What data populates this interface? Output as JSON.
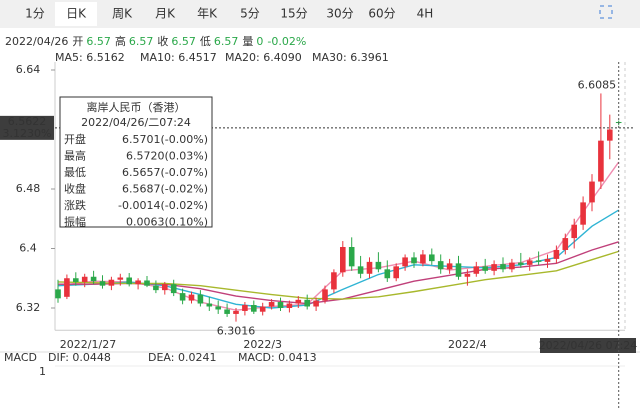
{
  "chart_data": {
    "type": "candlestick",
    "tabs": [
      "1分",
      "日K",
      "周K",
      "月K",
      "年K",
      "5分",
      "15分",
      "30分",
      "60分",
      "4H"
    ],
    "selected_tab": 1,
    "info": {
      "date": "2022/04/26",
      "items": [
        [
          "开",
          "6.57"
        ],
        [
          "高",
          "6.57"
        ],
        [
          "收",
          "6.57"
        ],
        [
          "低",
          "6.57"
        ],
        [
          "量",
          "0"
        ]
      ],
      "change": "-0.02%"
    },
    "ma_legend": [
      {
        "label": "MA5: 6.5162",
        "color": "#f08cb0"
      },
      {
        "label": "MA10: 6.4517",
        "color": "#2fb4d4"
      },
      {
        "label": "MA20: 6.4090",
        "color": "#c0407a"
      },
      {
        "label": "MA30: 6.3961",
        "color": "#a8b82c"
      }
    ],
    "ylim": [
      6.29,
      6.65
    ],
    "yticks": [
      6.64,
      6.48,
      6.4,
      6.32
    ],
    "up_color": "#e8323c",
    "down_color": "#2ba84a",
    "candles": [
      [
        6.345,
        6.358,
        6.327,
        6.333
      ],
      [
        6.335,
        6.365,
        6.332,
        6.36
      ],
      [
        6.36,
        6.368,
        6.35,
        6.355
      ],
      [
        6.355,
        6.366,
        6.348,
        6.362
      ],
      [
        6.362,
        6.37,
        6.352,
        6.356
      ],
      [
        6.356,
        6.364,
        6.346,
        6.35
      ],
      [
        6.35,
        6.362,
        6.344,
        6.358
      ],
      [
        6.358,
        6.366,
        6.35,
        6.361
      ],
      [
        6.361,
        6.367,
        6.349,
        6.352
      ],
      [
        6.352,
        6.36,
        6.345,
        6.357
      ],
      [
        6.357,
        6.363,
        6.348,
        6.35
      ],
      [
        6.35,
        6.357,
        6.34,
        6.344
      ],
      [
        6.344,
        6.355,
        6.338,
        6.352
      ],
      [
        6.352,
        6.358,
        6.336,
        6.34
      ],
      [
        6.34,
        6.346,
        6.325,
        6.33
      ],
      [
        6.33,
        6.342,
        6.326,
        6.338
      ],
      [
        6.338,
        6.344,
        6.322,
        6.326
      ],
      [
        6.326,
        6.335,
        6.316,
        6.322
      ],
      [
        6.322,
        6.33,
        6.312,
        6.318
      ],
      [
        6.318,
        6.326,
        6.308,
        6.312
      ],
      [
        6.312,
        6.32,
        6.3016,
        6.316
      ],
      [
        6.316,
        6.328,
        6.31,
        6.324
      ],
      [
        6.324,
        6.33,
        6.312,
        6.315
      ],
      [
        6.315,
        6.327,
        6.31,
        6.322
      ],
      [
        6.322,
        6.332,
        6.318,
        6.328
      ],
      [
        6.328,
        6.334,
        6.316,
        6.32
      ],
      [
        6.32,
        6.33,
        6.314,
        6.326
      ],
      [
        6.326,
        6.336,
        6.32,
        6.331
      ],
      [
        6.331,
        6.338,
        6.318,
        6.322
      ],
      [
        6.322,
        6.334,
        6.316,
        6.33
      ],
      [
        6.33,
        6.35,
        6.326,
        6.345
      ],
      [
        6.345,
        6.372,
        6.34,
        6.368
      ],
      [
        6.368,
        6.41,
        6.362,
        6.402
      ],
      [
        6.402,
        6.415,
        6.37,
        6.376
      ],
      [
        6.376,
        6.39,
        6.36,
        6.366
      ],
      [
        6.366,
        6.388,
        6.36,
        6.382
      ],
      [
        6.382,
        6.395,
        6.368,
        6.372
      ],
      [
        6.372,
        6.384,
        6.355,
        6.36
      ],
      [
        6.36,
        6.38,
        6.356,
        6.376
      ],
      [
        6.376,
        6.392,
        6.37,
        6.388
      ],
      [
        6.388,
        6.395,
        6.374,
        6.38
      ],
      [
        6.38,
        6.398,
        6.376,
        6.392
      ],
      [
        6.392,
        6.4,
        6.378,
        6.383
      ],
      [
        6.383,
        6.392,
        6.366,
        6.372
      ],
      [
        6.372,
        6.386,
        6.366,
        6.38
      ],
      [
        6.38,
        6.39,
        6.358,
        6.362
      ],
      [
        6.362,
        6.372,
        6.35,
        6.366
      ],
      [
        6.366,
        6.382,
        6.362,
        6.376
      ],
      [
        6.376,
        6.386,
        6.366,
        6.37
      ],
      [
        6.37,
        6.384,
        6.364,
        6.379
      ],
      [
        6.379,
        6.388,
        6.368,
        6.372
      ],
      [
        6.372,
        6.386,
        6.368,
        6.381
      ],
      [
        6.381,
        6.394,
        6.374,
        6.378
      ],
      [
        6.378,
        6.388,
        6.37,
        6.384
      ],
      [
        6.384,
        6.396,
        6.378,
        6.382
      ],
      [
        6.382,
        6.392,
        6.374,
        6.386
      ],
      [
        6.386,
        6.404,
        6.38,
        6.398
      ],
      [
        6.398,
        6.42,
        6.392,
        6.414
      ],
      [
        6.414,
        6.44,
        6.4,
        6.432
      ],
      [
        6.432,
        6.47,
        6.425,
        6.462
      ],
      [
        6.462,
        6.5,
        6.45,
        6.49
      ],
      [
        6.49,
        6.6085,
        6.48,
        6.545
      ],
      [
        6.545,
        6.58,
        6.52,
        6.56
      ],
      [
        6.5701,
        6.572,
        6.5657,
        6.5687
      ]
    ],
    "ma_x": [
      0,
      4,
      8,
      12,
      16,
      20,
      24,
      28,
      32,
      36,
      40,
      44,
      48,
      52,
      56,
      60,
      63
    ],
    "series": [
      {
        "color": "#f08cb0",
        "values": [
          6.35,
          6.356,
          6.355,
          6.347,
          6.328,
          6.317,
          6.322,
          6.325,
          6.37,
          6.374,
          6.383,
          6.371,
          6.376,
          6.381,
          6.398,
          6.466,
          6.5162
        ]
      },
      {
        "color": "#2fb4d4",
        "values": [
          6.35,
          6.352,
          6.355,
          6.35,
          6.338,
          6.325,
          6.32,
          6.324,
          6.345,
          6.365,
          6.378,
          6.376,
          6.374,
          6.378,
          6.388,
          6.43,
          6.4517
        ]
      },
      {
        "color": "#c0407a",
        "values": [
          6.352,
          6.352,
          6.353,
          6.352,
          6.346,
          6.336,
          6.33,
          6.326,
          6.332,
          6.344,
          6.356,
          6.364,
          6.372,
          6.375,
          6.38,
          6.398,
          6.409
        ]
      },
      {
        "color": "#a8b82c",
        "values": [
          6.355,
          6.354,
          6.353,
          6.353,
          6.35,
          6.344,
          6.338,
          6.333,
          6.332,
          6.335,
          6.342,
          6.35,
          6.358,
          6.364,
          6.37,
          6.385,
          6.3961
        ]
      }
    ],
    "current": {
      "value": 6.5622,
      "label": "6.5622",
      "pct": "3.1230%"
    },
    "high_note": {
      "index": 61,
      "value": 6.6085,
      "label": "6.6085"
    },
    "low_note": {
      "index": 20,
      "value": 6.3016,
      "label": "6.3016"
    },
    "x_labels": [
      {
        "index": 0,
        "label": "2022/1/27"
      },
      {
        "index": 23,
        "label": "2022/3"
      },
      {
        "index": 46,
        "label": "2022/4"
      }
    ],
    "cursor_label": "2022/04/26 07:24",
    "tooltip": {
      "title": "离岸人民币（香港）",
      "time": "2022/04/26/二07:24",
      "rows": [
        {
          "name": "开盘",
          "value": "6.5701(-0.00%)",
          "color": "#2ba84a"
        },
        {
          "name": "最高",
          "value": "6.5720(0.03%)",
          "color": "#e8323c"
        },
        {
          "name": "最低",
          "value": "6.5657(-0.07%)",
          "color": "#2ba84a"
        },
        {
          "name": "收盘",
          "value": "6.5687(-0.02%)",
          "color": "#2ba84a"
        },
        {
          "name": "涨跌",
          "value": "-0.0014(-0.02%)",
          "color": "#2ba84a"
        },
        {
          "name": "振幅",
          "value": "0.0063(0.10%)",
          "color": "#333333"
        }
      ]
    },
    "macd": {
      "title": "MACD",
      "items": [
        {
          "label": "DIF: 0.0448",
          "color": "#4a5fc0"
        },
        {
          "label": "DEA: 0.0241",
          "color": "#c050c0"
        },
        {
          "label": "MACD: 0.0413",
          "color": "#e8323c"
        }
      ],
      "axis_label": "1"
    }
  }
}
